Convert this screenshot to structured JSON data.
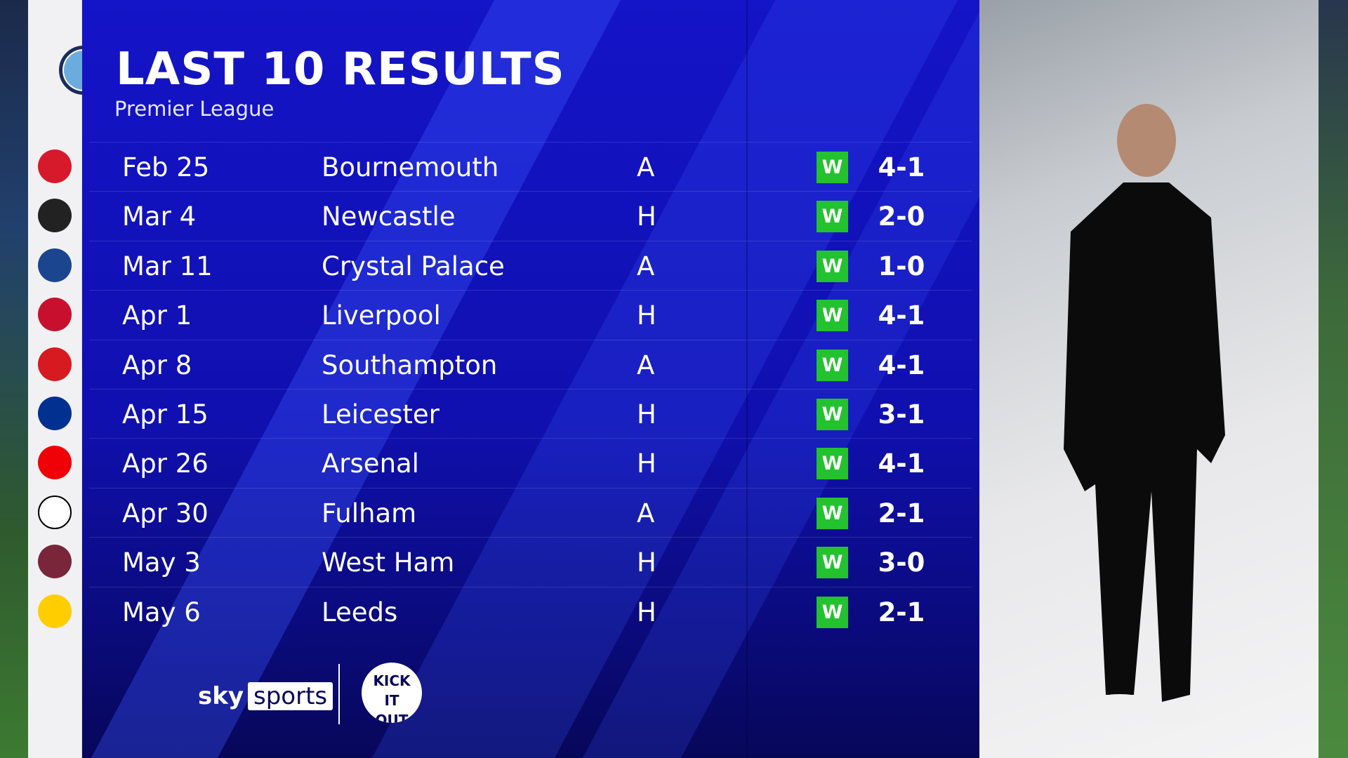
{
  "header": {
    "title": "LAST 10 RESULTS",
    "subtitle": "Premier League"
  },
  "team_crest": "manchester-city-crest",
  "colors": {
    "panel": "#1414c8",
    "win_badge": "#22c32e"
  },
  "results": [
    {
      "date": "Feb 25",
      "opponent": "Bournemouth",
      "venue": "A",
      "result": "W",
      "score": "4-1",
      "crest": "bournemouth-crest"
    },
    {
      "date": "Mar 4",
      "opponent": "Newcastle",
      "venue": "H",
      "result": "W",
      "score": "2-0",
      "crest": "newcastle-crest"
    },
    {
      "date": "Mar 11",
      "opponent": "Crystal Palace",
      "venue": "A",
      "result": "W",
      "score": "1-0",
      "crest": "crystal-palace-crest"
    },
    {
      "date": "Apr 1",
      "opponent": "Liverpool",
      "venue": "H",
      "result": "W",
      "score": "4-1",
      "crest": "liverpool-crest"
    },
    {
      "date": "Apr 8",
      "opponent": "Southampton",
      "venue": "A",
      "result": "W",
      "score": "4-1",
      "crest": "southampton-crest"
    },
    {
      "date": "Apr 15",
      "opponent": "Leicester",
      "venue": "H",
      "result": "W",
      "score": "3-1",
      "crest": "leicester-crest"
    },
    {
      "date": "Apr 26",
      "opponent": "Arsenal",
      "venue": "H",
      "result": "W",
      "score": "4-1",
      "crest": "arsenal-crest"
    },
    {
      "date": "Apr 30",
      "opponent": "Fulham",
      "venue": "A",
      "result": "W",
      "score": "2-1",
      "crest": "fulham-crest"
    },
    {
      "date": "May 3",
      "opponent": "West Ham",
      "venue": "H",
      "result": "W",
      "score": "3-0",
      "crest": "west-ham-crest"
    },
    {
      "date": "May 6",
      "opponent": "Leeds",
      "venue": "H",
      "result": "W",
      "score": "2-1",
      "crest": "leeds-crest"
    }
  ],
  "footer": {
    "sky": "sky",
    "sports": "sports",
    "kick_it_out": "KICK IT OUT"
  }
}
